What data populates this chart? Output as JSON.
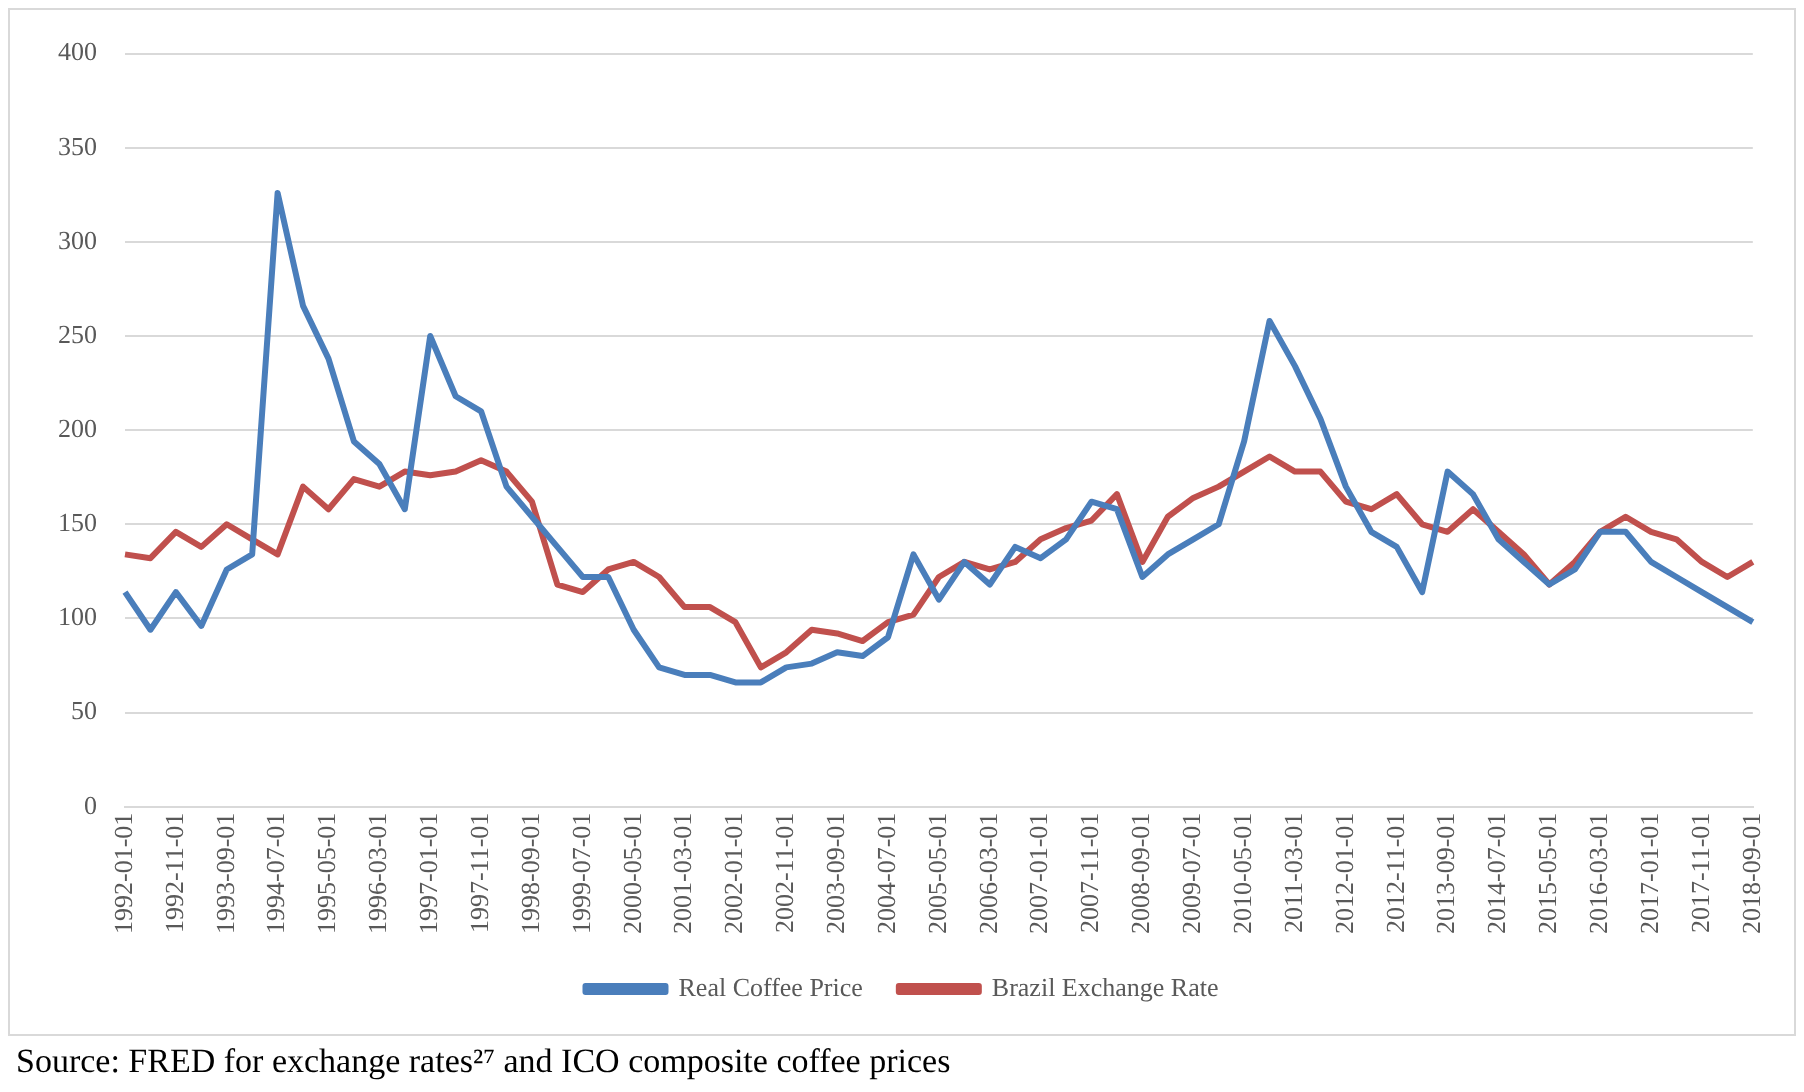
{
  "chart_data": {
    "type": "line",
    "categories": [
      "1992-01-01",
      null,
      "1992-11-01",
      null,
      "1993-09-01",
      null,
      "1994-07-01",
      null,
      "1995-05-01",
      null,
      "1996-03-01",
      null,
      "1997-01-01",
      null,
      "1997-11-01",
      null,
      "1998-09-01",
      null,
      "1999-07-01",
      null,
      "2000-05-01",
      null,
      "2001-03-01",
      null,
      "2002-01-01",
      null,
      "2002-11-01",
      null,
      "2003-09-01",
      null,
      "2004-07-01",
      null,
      "2005-05-01",
      null,
      "2006-03-01",
      null,
      "2007-01-01",
      null,
      "2007-11-01",
      null,
      "2008-09-01",
      null,
      "2009-07-01",
      null,
      "2010-05-01",
      null,
      "2011-03-01",
      null,
      "2012-01-01",
      null,
      "2012-11-01",
      null,
      "2013-09-01",
      null,
      "2014-07-01",
      null,
      "2015-05-01",
      null,
      "2016-03-01",
      null,
      "2017-01-01",
      null,
      "2017-11-01",
      null,
      "2018-09-01"
    ],
    "series": [
      {
        "name": "Real Coffee Price",
        "color": "#4a7ebb",
        "values": [
          114,
          94,
          114,
          96,
          126,
          134,
          326,
          266,
          238,
          194,
          182,
          158,
          250,
          218,
          210,
          170,
          154,
          138,
          122,
          122,
          94,
          74,
          70,
          70,
          66,
          66,
          74,
          76,
          82,
          80,
          90,
          134,
          110,
          130,
          118,
          138,
          132,
          142,
          162,
          158,
          122,
          134,
          142,
          150,
          194,
          258,
          234,
          206,
          170,
          146,
          138,
          114,
          178,
          166,
          142,
          130,
          118,
          126,
          146,
          146,
          130,
          122,
          114,
          106,
          98
        ]
      },
      {
        "name": "Brazil Exchange Rate",
        "color": "#c0504d",
        "values": [
          134,
          132,
          146,
          138,
          150,
          142,
          134,
          170,
          158,
          174,
          170,
          178,
          176,
          178,
          184,
          178,
          162,
          118,
          114,
          126,
          130,
          122,
          106,
          106,
          98,
          74,
          82,
          94,
          92,
          88,
          98,
          102,
          122,
          130,
          126,
          130,
          142,
          148,
          152,
          166,
          130,
          154,
          164,
          170,
          178,
          186,
          178,
          178,
          162,
          158,
          166,
          150,
          146,
          158,
          146,
          134,
          118,
          130,
          146,
          154,
          146,
          142,
          130,
          122,
          130
        ]
      }
    ],
    "ylim": [
      0,
      400
    ],
    "yticks": [
      0,
      50,
      100,
      150,
      200,
      250,
      300,
      350,
      400
    ],
    "grid": "y",
    "legend": "bottom",
    "annotations": [
      "Source: FRED for exchange rates²⁷ and ICO composite coffee prices"
    ]
  }
}
